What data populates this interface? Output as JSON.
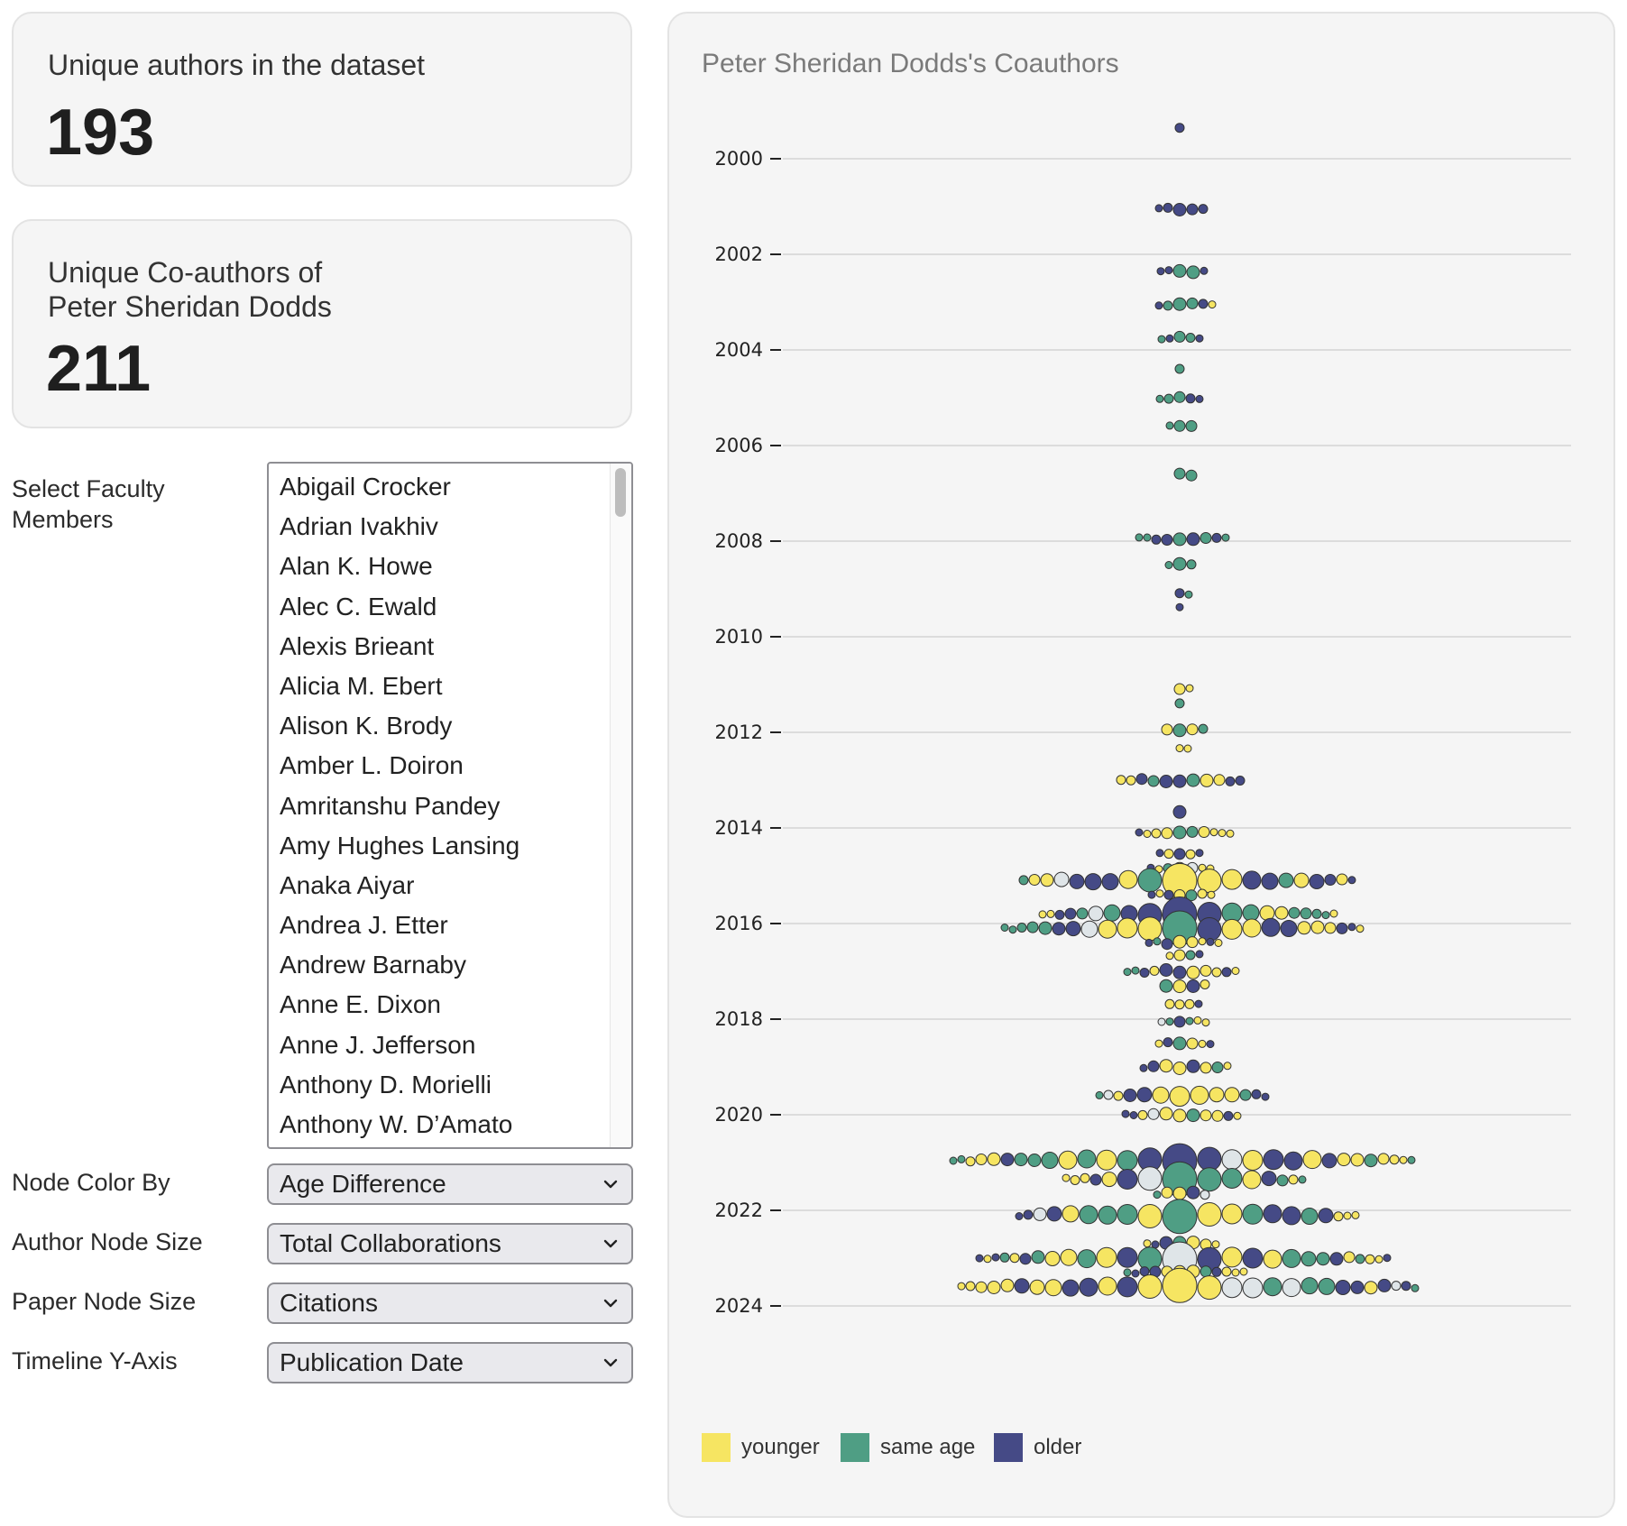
{
  "summary": {
    "authors_label": "Unique authors in the dataset",
    "authors_value": "193",
    "coauthors_label_line1": "Unique Co-authors of",
    "coauthors_label_line2": "Peter Sheridan Dodds",
    "coauthors_value": "211"
  },
  "controls": {
    "faculty_label": "Select Faculty Members",
    "faculty_options": [
      "Abigail Crocker",
      "Adrian Ivakhiv",
      "Alan K. Howe",
      "Alec C. Ewald",
      "Alexis Brieant",
      "Alicia M. Ebert",
      "Alison K. Brody",
      "Amber L. Doiron",
      "Amritanshu Pandey",
      "Amy Hughes Lansing",
      "Anaka Aiyar",
      "Andrea J. Etter",
      "Andrew Barnaby",
      "Anne E. Dixon",
      "Anne J. Jefferson",
      "Anthony D. Morielli",
      "Anthony W. D’Amato"
    ],
    "node_color_label": "Node Color By",
    "node_color_value": "Age Difference",
    "author_size_label": "Author Node Size",
    "author_size_value": "Total Collaborations",
    "paper_size_label": "Paper Node Size",
    "paper_size_value": "Citations",
    "timeline_label": "Timeline Y-Axis",
    "timeline_value": "Publication Date"
  },
  "chart_data": {
    "type": "scatter",
    "title": "Peter Sheridan Dodds's Coauthors",
    "y_ticks": [
      "2000",
      "2002",
      "2004",
      "2006",
      "2008",
      "2010",
      "2012",
      "2014",
      "2016",
      "2018",
      "2020",
      "2022",
      "2024"
    ],
    "ylim": [
      1999.35,
      2024.6
    ],
    "colors": {
      "younger": "#f6e562",
      "same": "#4f9e84",
      "older": "#454a86",
      "unknown": "#dfe5e8"
    },
    "legend": [
      {
        "key": "younger",
        "label": "younger",
        "color": "#f6e562"
      },
      {
        "key": "same",
        "label": "same age",
        "color": "#4f9e84"
      },
      {
        "key": "older",
        "label": "older",
        "color": "#454a86"
      }
    ],
    "rows": [
      {
        "y": 1999.35,
        "n": [
          0,
          0,
          1,
          0
        ]
      },
      {
        "y": 2001.05,
        "n": [
          0,
          0,
          5,
          0
        ]
      },
      {
        "y": 2002.35,
        "n": [
          0,
          2,
          3,
          0
        ]
      },
      {
        "y": 2003.05,
        "n": [
          1,
          3,
          2,
          0
        ]
      },
      {
        "y": 2003.75,
        "n": [
          0,
          3,
          2,
          0
        ]
      },
      {
        "y": 2004.4,
        "n": [
          0,
          1,
          0,
          0
        ]
      },
      {
        "y": 2005.0,
        "n": [
          0,
          3,
          2,
          0
        ]
      },
      {
        "y": 2005.6,
        "n": [
          0,
          3,
          0,
          0
        ]
      },
      {
        "y": 2006.6,
        "n": [
          0,
          2,
          0,
          0
        ]
      },
      {
        "y": 2007.95,
        "n": [
          0,
          5,
          4,
          0
        ]
      },
      {
        "y": 2008.5,
        "n": [
          0,
          3,
          0,
          0
        ]
      },
      {
        "y": 2009.1,
        "n": [
          0,
          1,
          1,
          0
        ]
      },
      {
        "y": 2009.4,
        "n": [
          0,
          0,
          1,
          0
        ]
      },
      {
        "y": 2011.1,
        "n": [
          2,
          0,
          0,
          0
        ]
      },
      {
        "y": 2011.4,
        "n": [
          0,
          1,
          0,
          0
        ]
      },
      {
        "y": 2011.95,
        "n": [
          2,
          2,
          0,
          0
        ]
      },
      {
        "y": 2012.35,
        "n": [
          2,
          0,
          0,
          0
        ]
      },
      {
        "y": 2013.0,
        "n": [
          4,
          2,
          5,
          0
        ]
      },
      {
        "y": 2013.65,
        "n": [
          0,
          0,
          1,
          0
        ]
      },
      {
        "y": 2014.1,
        "n": [
          7,
          2,
          1,
          0
        ]
      },
      {
        "y": 2014.55,
        "n": [
          2,
          0,
          3,
          0
        ]
      },
      {
        "y": 2014.85,
        "n": [
          4,
          1,
          1,
          1
        ]
      },
      {
        "y": 2015.1,
        "n": [
          8,
          3,
          8,
          1
        ]
      },
      {
        "y": 2015.4,
        "n": [
          4,
          1,
          2,
          0
        ]
      },
      {
        "y": 2015.8,
        "n": [
          5,
          8,
          6,
          1
        ]
      },
      {
        "y": 2016.1,
        "n": [
          9,
          6,
          7,
          1
        ]
      },
      {
        "y": 2016.4,
        "n": [
          4,
          1,
          3,
          0
        ]
      },
      {
        "y": 2016.65,
        "n": [
          2,
          1,
          1,
          0
        ]
      },
      {
        "y": 2017.0,
        "n": [
          5,
          2,
          4,
          0
        ]
      },
      {
        "y": 2017.3,
        "n": [
          2,
          1,
          1,
          0
        ]
      },
      {
        "y": 2017.7,
        "n": [
          3,
          0,
          1,
          0
        ]
      },
      {
        "y": 2018.05,
        "n": [
          2,
          2,
          1,
          1
        ]
      },
      {
        "y": 2018.5,
        "n": [
          3,
          1,
          2,
          0
        ]
      },
      {
        "y": 2019.0,
        "n": [
          4,
          1,
          3,
          0
        ]
      },
      {
        "y": 2019.6,
        "n": [
          6,
          2,
          4,
          1
        ]
      },
      {
        "y": 2020.0,
        "n": [
          6,
          1,
          3,
          1
        ]
      },
      {
        "y": 2020.95,
        "n": [
          12,
          9,
          7,
          1
        ]
      },
      {
        "y": 2021.35,
        "n": [
          6,
          5,
          3,
          1
        ]
      },
      {
        "y": 2021.65,
        "n": [
          2,
          1,
          1,
          1
        ]
      },
      {
        "y": 2022.1,
        "n": [
          7,
          6,
          6,
          1
        ]
      },
      {
        "y": 2022.7,
        "n": [
          4,
          1,
          2,
          0
        ]
      },
      {
        "y": 2023.0,
        "n": [
          10,
          8,
          8,
          1
        ]
      },
      {
        "y": 2023.3,
        "n": [
          6,
          2,
          4,
          0
        ]
      },
      {
        "y": 2023.6,
        "n": [
          12,
          4,
          8,
          4
        ]
      }
    ]
  }
}
